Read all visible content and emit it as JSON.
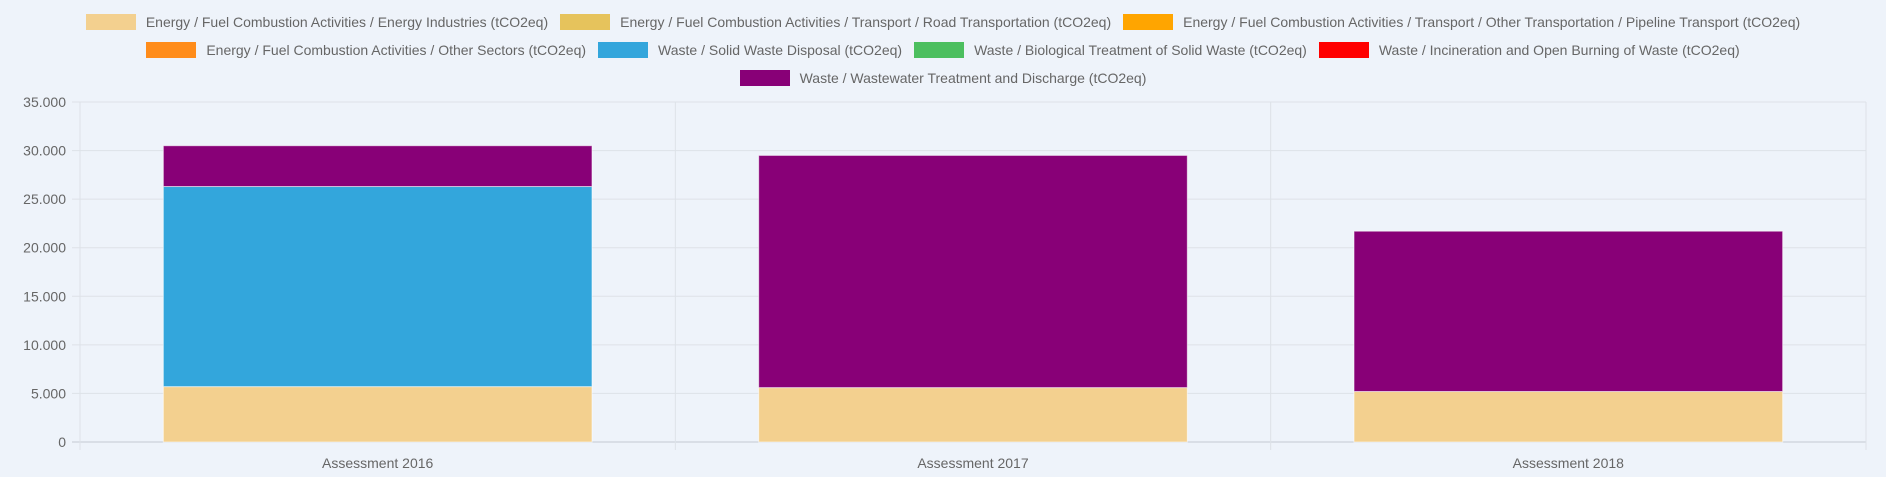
{
  "chart_data": {
    "type": "bar",
    "stacked": true,
    "title": "",
    "xlabel": "",
    "ylabel": "",
    "ylim": [
      0,
      35000
    ],
    "y_ticks": [
      "0",
      "5.000",
      "10.000",
      "15.000",
      "20.000",
      "25.000",
      "30.000",
      "35.000"
    ],
    "grid": true,
    "legend_position": "top",
    "categories": [
      "Assessment 2016",
      "Assessment 2017",
      "Assessment 2018"
    ],
    "series": [
      {
        "name": "Energy / Fuel Combustion Activities / Energy Industries (tCO2eq)",
        "color": "#f3d08f",
        "values": [
          5700,
          5600,
          5200
        ]
      },
      {
        "name": "Energy / Fuel Combustion Activities / Transport / Road Transportation (tCO2eq)",
        "color": "#e6c35c",
        "values": [
          0,
          0,
          0
        ]
      },
      {
        "name": "Energy / Fuel Combustion Activities / Transport / Other Transportation / Pipeline Transport (tCO2eq)",
        "color": "#ffa500",
        "values": [
          0,
          0,
          0
        ]
      },
      {
        "name": "Energy / Fuel Combustion Activities / Other Sectors (tCO2eq)",
        "color": "#ff8c1a",
        "values": [
          0,
          0,
          0
        ]
      },
      {
        "name": "Waste / Solid Waste Disposal (tCO2eq)",
        "color": "#33a6dc",
        "values": [
          20600,
          0,
          0
        ]
      },
      {
        "name": "Waste / Biological Treatment of Solid Waste (tCO2eq)",
        "color": "#4cbf5f",
        "values": [
          0,
          0,
          0
        ]
      },
      {
        "name": "Waste / Incineration and Open Burning of Waste (tCO2eq)",
        "color": "#ff0000",
        "values": [
          0,
          0,
          0
        ]
      },
      {
        "name": "Waste / Wastewater Treatment and Discharge (tCO2eq)",
        "color": "#880077",
        "values": [
          4200,
          23900,
          16500
        ]
      }
    ]
  }
}
